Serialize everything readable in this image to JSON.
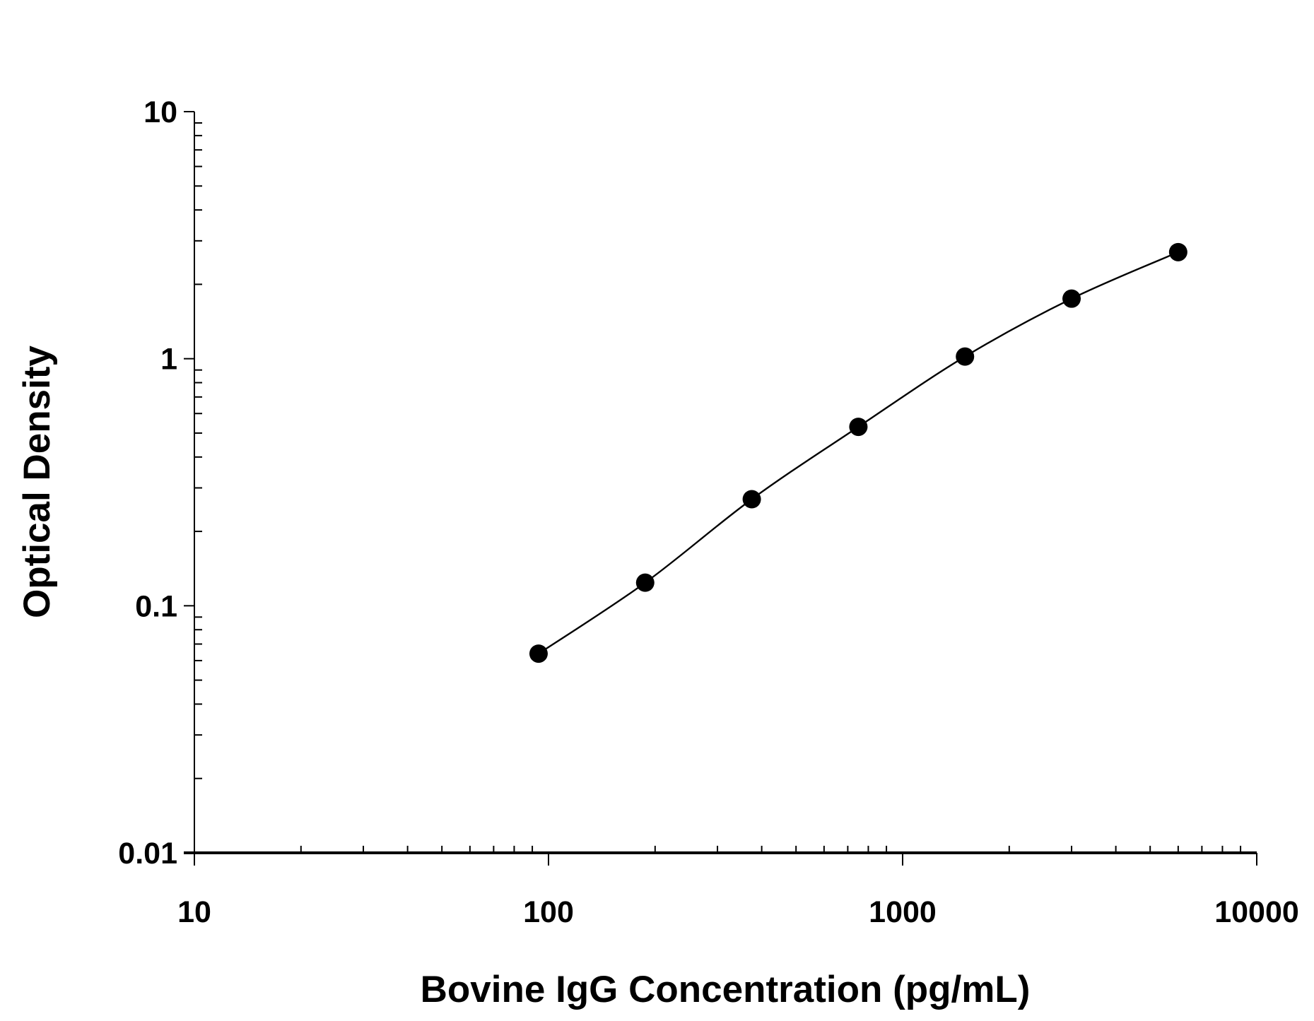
{
  "chart_data": {
    "type": "scatter",
    "title": "",
    "xlabel": "Bovine IgG Concentration (pg/mL)",
    "ylabel": "Optical Density",
    "x_scale": "log",
    "y_scale": "log",
    "xlim": [
      10,
      10000
    ],
    "ylim": [
      0.01,
      10
    ],
    "x_ticks": [
      "10",
      "100",
      "1000",
      "10000"
    ],
    "y_ticks": [
      "0.01",
      "0.1",
      "1",
      "10"
    ],
    "grid": false,
    "fitted_curve": true,
    "marker_color": "#000000",
    "line_color": "#000000",
    "series": [
      {
        "x": [
          93.75,
          187.5,
          375,
          750,
          1500,
          3000,
          6000
        ],
        "y": [
          0.064,
          0.124,
          0.27,
          0.53,
          1.02,
          1.75,
          2.7
        ]
      }
    ]
  }
}
